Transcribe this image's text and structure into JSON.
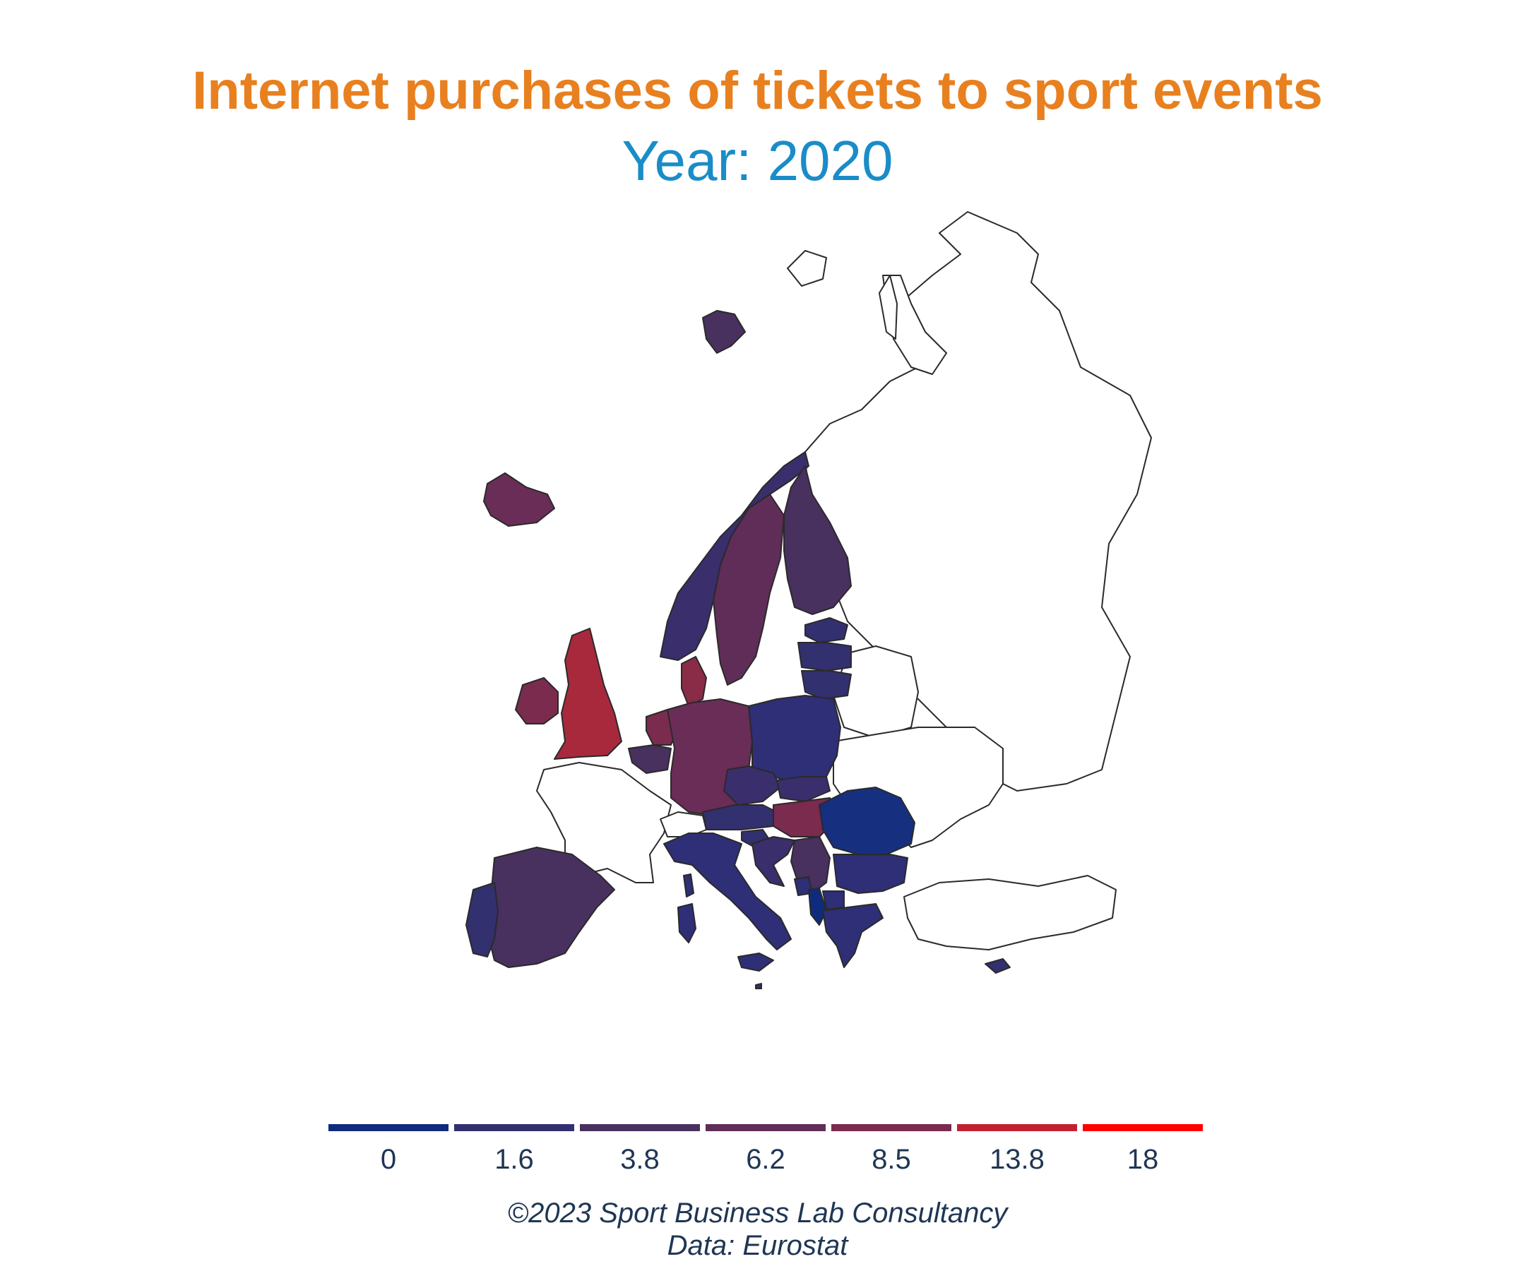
{
  "header": {
    "title": "Internet purchases of tickets to sport events",
    "subtitle": "Year: 2020"
  },
  "legend": {
    "breaks": [
      {
        "label": "0",
        "color": "#0F2B7C"
      },
      {
        "label": "1.6",
        "color": "#33306F"
      },
      {
        "label": "3.8",
        "color": "#48305F"
      },
      {
        "label": "6.2",
        "color": "#5F2D58"
      },
      {
        "label": "8.5",
        "color": "#7A2B4E"
      },
      {
        "label": "13.8",
        "color": "#C3202F"
      },
      {
        "label": "18",
        "color": "#FF0000"
      }
    ]
  },
  "caption": {
    "line1": "©2023 Sport Business Lab Consultancy",
    "line2": "Data: Eurostat"
  }
}
